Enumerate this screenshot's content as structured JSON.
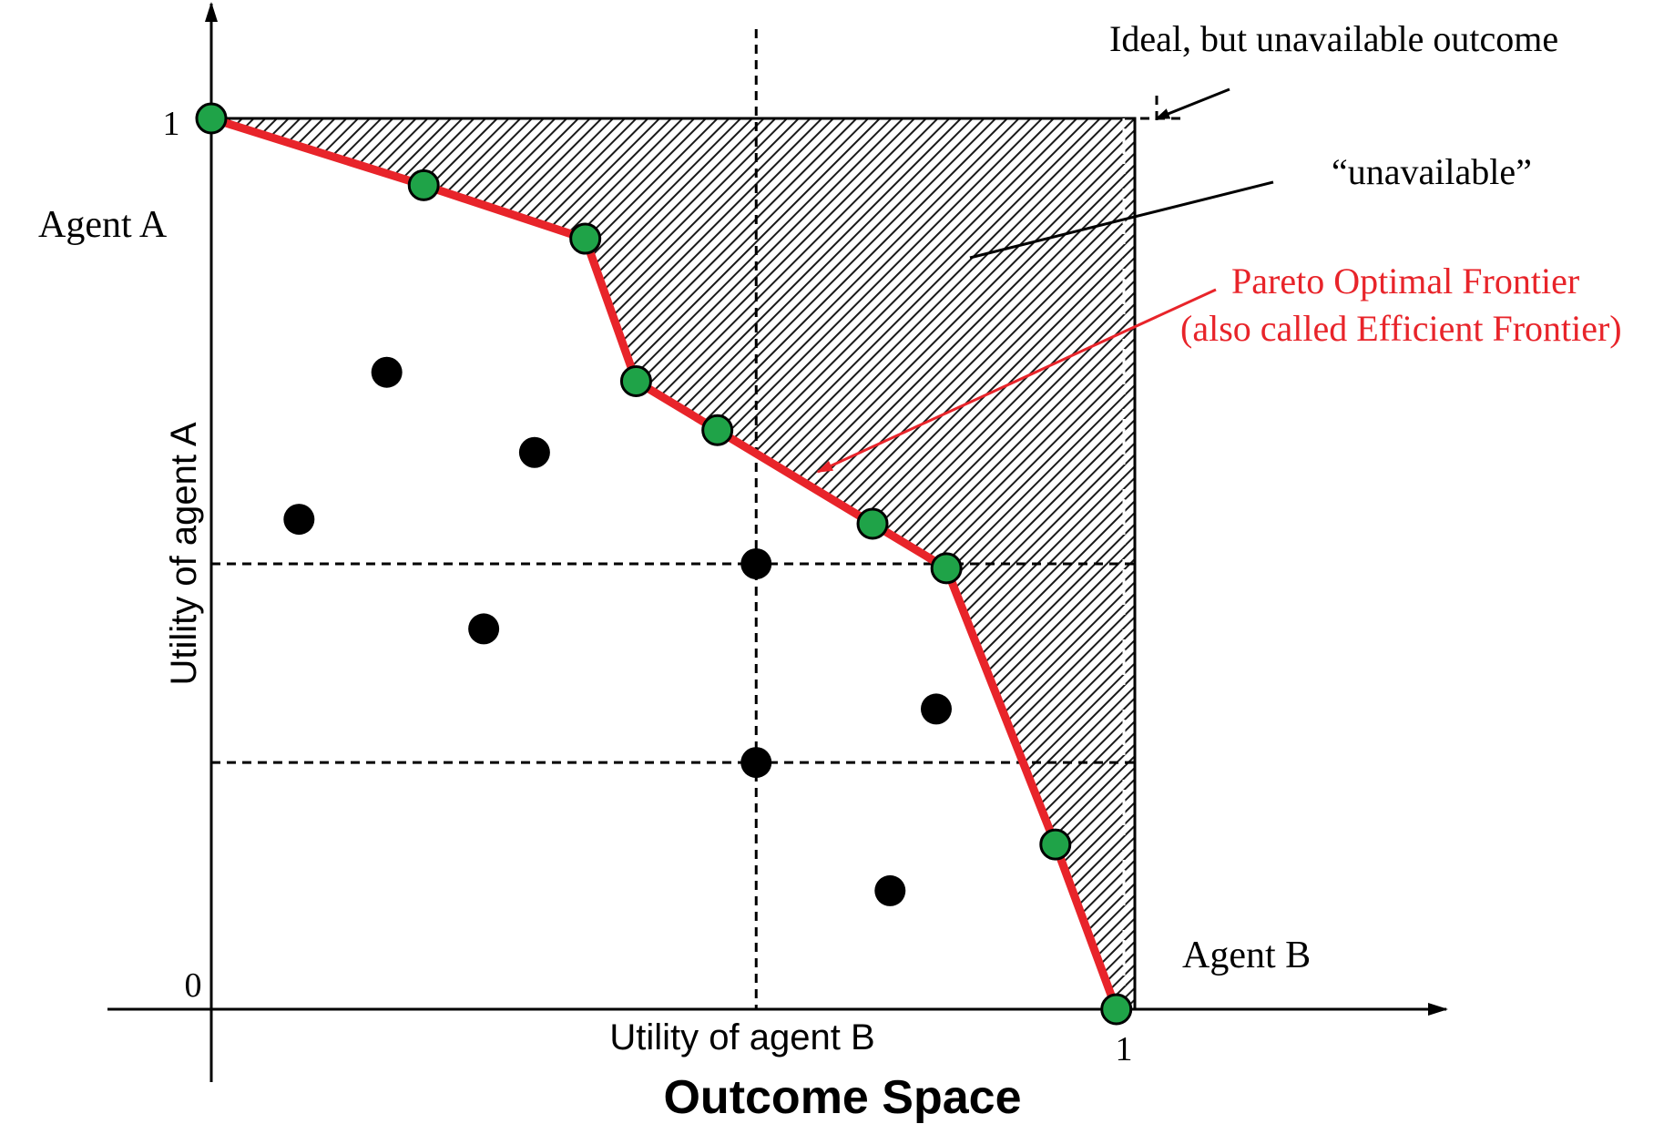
{
  "title": "Outcome Space",
  "xlabel": "Utility of agent B",
  "ylabel": "Utility of agent A",
  "ticks": {
    "y_top": "1",
    "origin": "0",
    "x_right": "1"
  },
  "axis_ends": {
    "y_axis": "Agent A",
    "x_axis": "Agent B"
  },
  "annotations": {
    "ideal": "Ideal, but unavailable outcome",
    "unavailable": "“unavailable”",
    "pareto_line1": "Pareto Optimal Frontier",
    "pareto_line2": "(also called Efficient Frontier)"
  },
  "colors": {
    "frontier": "#e8242a",
    "pareto_point": "#1fa348",
    "dominated_point": "#000000",
    "pareto_label": "#e8242a"
  },
  "chart_data": {
    "type": "scatter",
    "xlim": [
      0,
      1
    ],
    "ylim": [
      0,
      1
    ],
    "pareto_points": [
      {
        "x": 0.0,
        "y": 1.0
      },
      {
        "x": 0.23,
        "y": 0.925
      },
      {
        "x": 0.405,
        "y": 0.865
      },
      {
        "x": 0.46,
        "y": 0.705
      },
      {
        "x": 0.548,
        "y": 0.65
      },
      {
        "x": 0.716,
        "y": 0.545
      },
      {
        "x": 0.796,
        "y": 0.495
      },
      {
        "x": 0.914,
        "y": 0.185
      },
      {
        "x": 0.98,
        "y": 0.0
      }
    ],
    "dominated_points": [
      {
        "x": 0.19,
        "y": 0.715
      },
      {
        "x": 0.35,
        "y": 0.625
      },
      {
        "x": 0.095,
        "y": 0.55
      },
      {
        "x": 0.59,
        "y": 0.5
      },
      {
        "x": 0.295,
        "y": 0.427
      },
      {
        "x": 0.785,
        "y": 0.337
      },
      {
        "x": 0.59,
        "y": 0.277
      },
      {
        "x": 0.735,
        "y": 0.133
      }
    ],
    "guide_lines": {
      "vertical_x": 0.59,
      "horizontal_y": [
        0.5,
        0.277
      ]
    },
    "ideal_point": {
      "x": 1,
      "y": 1
    }
  }
}
